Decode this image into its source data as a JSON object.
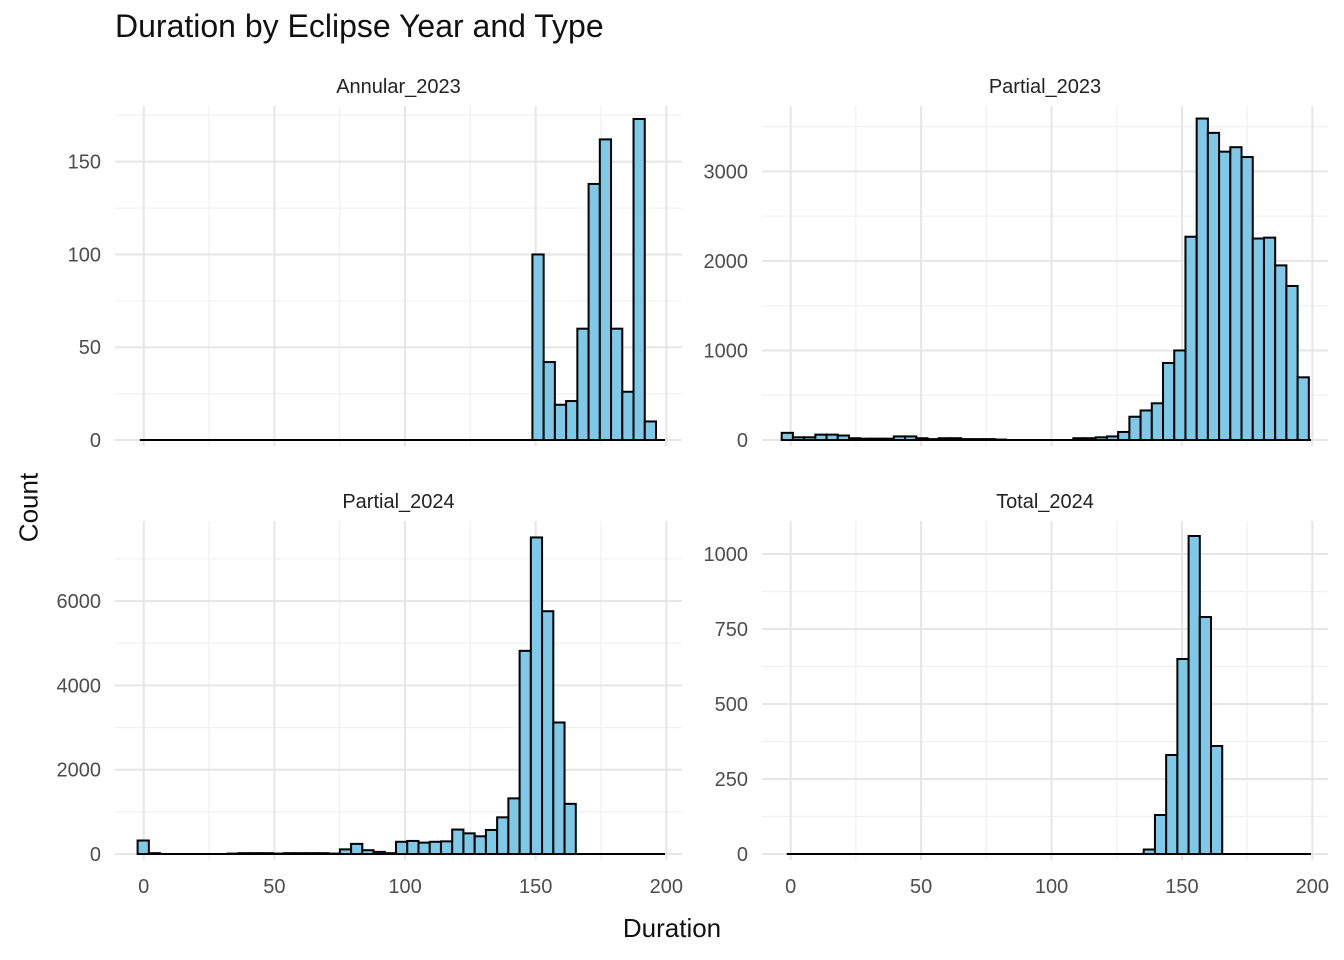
{
  "chart_data": {
    "type": "bar",
    "title": "Duration by Eclipse Year and Type",
    "xlabel": "Duration",
    "ylabel": "Count",
    "grid": true,
    "bar_fill": "#7ec8e8",
    "bar_stroke": "#000000",
    "xlim": [
      -5,
      200
    ],
    "x_ticks": [
      0,
      50,
      100,
      150,
      200
    ],
    "bin_width": 4.3,
    "panels": [
      {
        "name": "Annular_2023",
        "ylim": [
          0,
          180
        ],
        "y_ticks": [
          0,
          50,
          100,
          150
        ],
        "bins": [
          {
            "x": 150.9,
            "count": 100
          },
          {
            "x": 155.2,
            "count": 42
          },
          {
            "x": 159.5,
            "count": 19
          },
          {
            "x": 163.8,
            "count": 21
          },
          {
            "x": 168.1,
            "count": 60
          },
          {
            "x": 172.4,
            "count": 138
          },
          {
            "x": 176.7,
            "count": 162
          },
          {
            "x": 181.0,
            "count": 60
          },
          {
            "x": 185.3,
            "count": 26
          },
          {
            "x": 189.6,
            "count": 173
          },
          {
            "x": 193.9,
            "count": 10
          }
        ]
      },
      {
        "name": "Partial_2023",
        "ylim": [
          0,
          3730
        ],
        "y_ticks": [
          0,
          1000,
          2000,
          3000
        ],
        "bins": [
          {
            "x": -1.3,
            "count": 80
          },
          {
            "x": 3.0,
            "count": 30
          },
          {
            "x": 7.3,
            "count": 30
          },
          {
            "x": 11.6,
            "count": 60
          },
          {
            "x": 15.9,
            "count": 60
          },
          {
            "x": 20.2,
            "count": 50
          },
          {
            "x": 24.5,
            "count": 20
          },
          {
            "x": 28.8,
            "count": 15
          },
          {
            "x": 33.1,
            "count": 15
          },
          {
            "x": 37.4,
            "count": 15
          },
          {
            "x": 41.7,
            "count": 40
          },
          {
            "x": 46.0,
            "count": 40
          },
          {
            "x": 50.3,
            "count": 20
          },
          {
            "x": 54.6,
            "count": 10
          },
          {
            "x": 58.9,
            "count": 20
          },
          {
            "x": 63.2,
            "count": 20
          },
          {
            "x": 67.5,
            "count": 10
          },
          {
            "x": 71.8,
            "count": 10
          },
          {
            "x": 76.1,
            "count": 10
          },
          {
            "x": 80.4,
            "count": 5
          },
          {
            "x": 110.5,
            "count": 20
          },
          {
            "x": 114.8,
            "count": 20
          },
          {
            "x": 119.1,
            "count": 30
          },
          {
            "x": 123.4,
            "count": 40
          },
          {
            "x": 127.7,
            "count": 90
          },
          {
            "x": 132.0,
            "count": 260
          },
          {
            "x": 136.3,
            "count": 330
          },
          {
            "x": 140.6,
            "count": 410
          },
          {
            "x": 144.9,
            "count": 860
          },
          {
            "x": 149.2,
            "count": 1000
          },
          {
            "x": 153.5,
            "count": 2270
          },
          {
            "x": 157.8,
            "count": 3590
          },
          {
            "x": 162.1,
            "count": 3430
          },
          {
            "x": 166.4,
            "count": 3220
          },
          {
            "x": 170.7,
            "count": 3270
          },
          {
            "x": 175.0,
            "count": 3160
          },
          {
            "x": 179.3,
            "count": 2250
          },
          {
            "x": 183.6,
            "count": 2260
          },
          {
            "x": 187.9,
            "count": 1950
          },
          {
            "x": 192.2,
            "count": 1720
          },
          {
            "x": 196.5,
            "count": 700
          }
        ]
      },
      {
        "name": "Partial_2024",
        "ylim": [
          0,
          7900
        ],
        "y_ticks": [
          0,
          2000,
          4000,
          6000
        ],
        "bins": [
          {
            "x": -0.2,
            "count": 320
          },
          {
            "x": 4.1,
            "count": 20
          },
          {
            "x": 34.2,
            "count": 10
          },
          {
            "x": 38.5,
            "count": 20
          },
          {
            "x": 42.8,
            "count": 20
          },
          {
            "x": 47.1,
            "count": 20
          },
          {
            "x": 51.4,
            "count": 10
          },
          {
            "x": 55.7,
            "count": 20
          },
          {
            "x": 60.0,
            "count": 20
          },
          {
            "x": 64.3,
            "count": 20
          },
          {
            "x": 68.6,
            "count": 20
          },
          {
            "x": 72.9,
            "count": 10
          },
          {
            "x": 77.2,
            "count": 110
          },
          {
            "x": 81.5,
            "count": 240
          },
          {
            "x": 85.8,
            "count": 90
          },
          {
            "x": 90.1,
            "count": 50
          },
          {
            "x": 94.4,
            "count": 20
          },
          {
            "x": 98.7,
            "count": 290
          },
          {
            "x": 103.0,
            "count": 310
          },
          {
            "x": 107.3,
            "count": 270
          },
          {
            "x": 111.6,
            "count": 290
          },
          {
            "x": 115.9,
            "count": 300
          },
          {
            "x": 120.2,
            "count": 580
          },
          {
            "x": 124.5,
            "count": 490
          },
          {
            "x": 128.8,
            "count": 420
          },
          {
            "x": 133.1,
            "count": 570
          },
          {
            "x": 137.4,
            "count": 870
          },
          {
            "x": 141.7,
            "count": 1320
          },
          {
            "x": 146.0,
            "count": 4820
          },
          {
            "x": 150.3,
            "count": 7510
          },
          {
            "x": 154.6,
            "count": 5760
          },
          {
            "x": 158.9,
            "count": 3120
          },
          {
            "x": 163.2,
            "count": 1190
          }
        ]
      },
      {
        "name": "Total_2024",
        "ylim": [
          0,
          1110
        ],
        "y_ticks": [
          0,
          250,
          500,
          750,
          1000
        ],
        "bins": [
          {
            "x": 137.5,
            "count": 15
          },
          {
            "x": 141.8,
            "count": 130
          },
          {
            "x": 146.1,
            "count": 330
          },
          {
            "x": 150.4,
            "count": 650
          },
          {
            "x": 154.7,
            "count": 1060
          },
          {
            "x": 159.0,
            "count": 790
          },
          {
            "x": 163.3,
            "count": 360
          }
        ]
      }
    ]
  }
}
